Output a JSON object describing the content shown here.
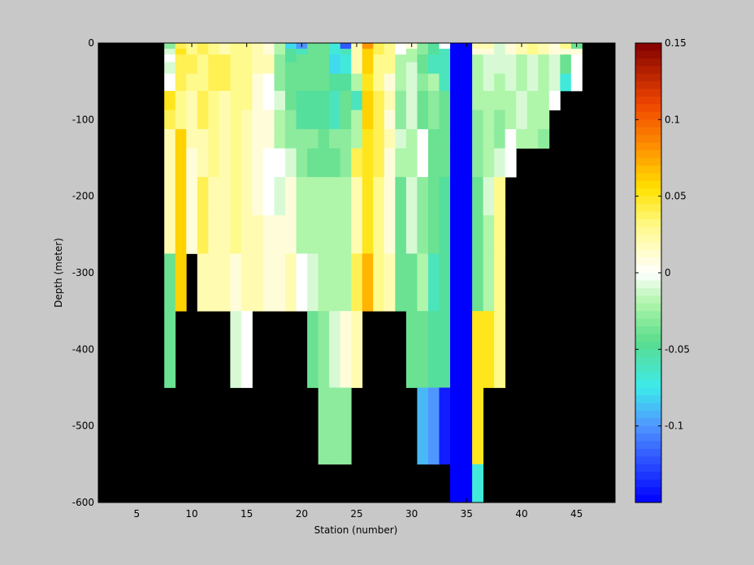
{
  "chart_data": {
    "type": "heatmap",
    "title": "",
    "xlabel": "Station (number)",
    "ylabel": "Depth (meter)",
    "xlim": [
      1.5,
      48.5
    ],
    "ylim": [
      -600,
      0
    ],
    "x_ticks": [
      5,
      10,
      15,
      20,
      25,
      30,
      35,
      40,
      45
    ],
    "y_ticks": [
      0,
      -100,
      -200,
      -300,
      -400,
      -500,
      -600
    ],
    "colorbar": {
      "colormap": "jet-white-centered",
      "clim": [
        -0.15,
        0.15
      ],
      "ticks": [
        0.15,
        0.1,
        0.05,
        0,
        -0.05,
        -0.1
      ],
      "tick_labels": [
        "0.15",
        "0.1",
        "0.05",
        "0",
        "-0.05",
        "-0.1"
      ]
    },
    "missing_color": "#000000",
    "depth_levels": [
      -5,
      -10,
      -20,
      -30,
      -50,
      -75,
      -100,
      -125,
      -150,
      -200,
      -250,
      -300,
      -400,
      -500,
      -600
    ],
    "stations": [
      8,
      9,
      10,
      11,
      12,
      13,
      14,
      15,
      16,
      17,
      18,
      19,
      20,
      21,
      22,
      23,
      24,
      25,
      26,
      27,
      28,
      29,
      30,
      31,
      32,
      33,
      34,
      35,
      36,
      37,
      38,
      39,
      40,
      41,
      42,
      43,
      44,
      45
    ],
    "columns": [
      {
        "x": 8,
        "v": [
          -0.03,
          -0.01,
          0.0,
          -0.01,
          0.0,
          0.05,
          0.04,
          0.02,
          0.02,
          0.02,
          0.02,
          -0.04,
          -0.04
        ]
      },
      {
        "x": 9,
        "v": [
          0.04,
          0.05,
          0.04,
          0.04,
          0.04,
          0.03,
          0.03,
          0.06,
          0.06,
          0.06,
          0.06,
          0.06
        ]
      },
      {
        "x": 10,
        "v": [
          0.03,
          0.03,
          0.04,
          0.04,
          0.03,
          0.02,
          0.02,
          0.02,
          0.01,
          0.01,
          0.01
        ]
      },
      {
        "x": 11,
        "v": [
          0.04,
          0.04,
          0.03,
          0.03,
          0.03,
          0.04,
          0.04,
          0.02,
          0.02,
          0.04,
          0.04,
          0.02
        ]
      },
      {
        "x": 12,
        "v": [
          0.03,
          0.03,
          0.04,
          0.04,
          0.04,
          0.03,
          0.03,
          0.03,
          0.03,
          0.02,
          0.02,
          0.02
        ]
      },
      {
        "x": 13,
        "v": [
          0.02,
          0.02,
          0.04,
          0.04,
          0.04,
          0.02,
          0.02,
          0.02,
          0.02,
          0.02,
          0.02,
          0.02
        ]
      },
      {
        "x": 14,
        "v": [
          0.03,
          0.03,
          0.03,
          0.03,
          0.03,
          0.03,
          0.03,
          0.03,
          0.03,
          0.03,
          0.03,
          0.01,
          -0.01
        ]
      },
      {
        "x": 15,
        "v": [
          0.03,
          0.03,
          0.03,
          0.03,
          0.03,
          0.03,
          0.02,
          0.02,
          0.02,
          0.02,
          0.02,
          0.02,
          0.0
        ]
      },
      {
        "x": 16,
        "v": [
          0.02,
          0.02,
          0.02,
          0.02,
          0.01,
          0.01,
          0.01,
          0.01,
          0.01,
          0.01,
          0.02,
          0.02
        ]
      },
      {
        "x": 17,
        "v": [
          0.01,
          0.01,
          0.02,
          0.02,
          0.0,
          0.0,
          0.01,
          0.01,
          0.0,
          0.0,
          0.01,
          0.01
        ]
      },
      {
        "x": 18,
        "v": [
          -0.02,
          -0.02,
          -0.03,
          -0.03,
          -0.03,
          -0.01,
          -0.02,
          -0.02,
          0.0,
          -0.01,
          0.01,
          0.01
        ]
      },
      {
        "x": 19,
        "v": [
          -0.08,
          -0.05,
          -0.05,
          -0.04,
          -0.04,
          -0.04,
          -0.03,
          -0.03,
          -0.01,
          0.01,
          0.01,
          0.02
        ]
      },
      {
        "x": 20,
        "v": [
          -0.1,
          -0.06,
          -0.04,
          -0.04,
          -0.04,
          -0.05,
          -0.05,
          -0.03,
          -0.03,
          -0.02,
          -0.02,
          0.0
        ]
      },
      {
        "x": 21,
        "v": [
          -0.04,
          -0.04,
          -0.04,
          -0.04,
          -0.04,
          -0.05,
          -0.05,
          -0.03,
          -0.04,
          -0.02,
          -0.02,
          -0.01,
          -0.04
        ]
      },
      {
        "x": 22,
        "v": [
          -0.04,
          -0.04,
          -0.04,
          -0.04,
          -0.04,
          -0.05,
          -0.05,
          -0.04,
          -0.04,
          -0.02,
          -0.02,
          -0.02,
          -0.03,
          -0.03
        ]
      },
      {
        "x": 23,
        "v": [
          -0.07,
          -0.07,
          -0.08,
          -0.08,
          -0.05,
          -0.06,
          -0.06,
          -0.03,
          -0.04,
          -0.02,
          -0.02,
          -0.02,
          -0.01,
          -0.03
        ]
      },
      {
        "x": 24,
        "v": [
          -0.12,
          -0.06,
          -0.07,
          -0.07,
          -0.05,
          -0.04,
          -0.04,
          -0.03,
          -0.03,
          -0.02,
          -0.02,
          -0.02,
          0.01,
          -0.03
        ]
      },
      {
        "x": 25,
        "v": [
          0.02,
          0.02,
          0.02,
          0.02,
          -0.02,
          -0.06,
          -0.02,
          -0.02,
          0.04,
          0.02,
          0.02,
          0.04,
          0.02
        ]
      },
      {
        "x": 26,
        "v": [
          0.08,
          0.06,
          0.06,
          0.06,
          0.05,
          0.06,
          0.06,
          0.05,
          0.05,
          0.05,
          0.05,
          0.07
        ]
      },
      {
        "x": 27,
        "v": [
          0.04,
          0.04,
          0.03,
          0.03,
          0.03,
          0.04,
          0.04,
          0.04,
          0.04,
          0.03,
          0.03,
          0.03
        ]
      },
      {
        "x": 28,
        "v": [
          0.03,
          0.03,
          0.03,
          0.03,
          0.01,
          0.02,
          0.01,
          0.02,
          0.01,
          0.01,
          0.01,
          0.02
        ]
      },
      {
        "x": 29,
        "v": [
          0.0,
          0.0,
          -0.02,
          -0.02,
          -0.02,
          -0.03,
          -0.03,
          -0.01,
          -0.02,
          -0.04,
          -0.04,
          -0.04
        ]
      },
      {
        "x": 30,
        "v": [
          0.01,
          -0.02,
          -0.02,
          -0.01,
          -0.01,
          -0.01,
          -0.01,
          -0.02,
          -0.02,
          -0.01,
          -0.01,
          -0.04,
          -0.04
        ]
      },
      {
        "x": 31,
        "v": [
          -0.03,
          -0.03,
          -0.04,
          -0.04,
          -0.03,
          -0.04,
          -0.04,
          0.0,
          0.0,
          -0.03,
          -0.03,
          -0.02,
          -0.04,
          -0.09
        ]
      },
      {
        "x": 32,
        "v": [
          -0.05,
          -0.05,
          -0.06,
          -0.06,
          -0.02,
          -0.03,
          -0.03,
          -0.04,
          -0.04,
          -0.04,
          -0.04,
          -0.06,
          -0.05,
          -0.1
        ]
      },
      {
        "x": 33,
        "v": [
          0.0,
          -0.06,
          -0.06,
          -0.06,
          -0.06,
          -0.04,
          -0.04,
          -0.04,
          -0.04,
          -0.05,
          -0.05,
          -0.05,
          -0.05,
          -0.14
        ]
      },
      {
        "x": 34,
        "v": [
          -0.15,
          -0.15,
          -0.15,
          -0.15,
          -0.15,
          -0.15,
          -0.15,
          -0.15,
          -0.15,
          -0.15,
          -0.15,
          -0.15,
          -0.15,
          -0.15,
          -0.15
        ]
      },
      {
        "x": 35,
        "v": [
          -0.15,
          -0.15,
          -0.15,
          -0.15,
          -0.15,
          -0.15,
          -0.15,
          -0.15,
          -0.15,
          -0.15,
          -0.15,
          -0.15,
          -0.15,
          -0.15,
          -0.15
        ]
      },
      {
        "x": 36,
        "v": [
          0.02,
          0.01,
          -0.02,
          -0.02,
          -0.02,
          -0.02,
          -0.03,
          -0.03,
          -0.03,
          -0.04,
          -0.04,
          -0.04,
          0.05,
          0.05,
          -0.07
        ]
      },
      {
        "x": 37,
        "v": [
          0.02,
          0.01,
          -0.01,
          -0.01,
          -0.01,
          -0.02,
          -0.02,
          -0.02,
          -0.02,
          -0.01,
          -0.02,
          -0.02,
          0.05
        ]
      },
      {
        "x": 38,
        "v": [
          -0.01,
          -0.01,
          -0.01,
          -0.01,
          -0.02,
          -0.02,
          -0.03,
          -0.03,
          -0.01,
          0.03,
          0.03,
          0.03,
          0.03
        ]
      },
      {
        "x": 39,
        "v": [
          0.01,
          0.01,
          -0.01,
          -0.01,
          -0.01,
          -0.02,
          -0.02,
          0.0,
          0.0
        ]
      },
      {
        "x": 40,
        "v": [
          0.02,
          0.02,
          -0.02,
          -0.02,
          -0.02,
          -0.01,
          -0.01,
          -0.02
        ]
      },
      {
        "x": 41,
        "v": [
          0.03,
          0.03,
          -0.01,
          -0.01,
          -0.01,
          -0.02,
          -0.02,
          -0.02
        ]
      },
      {
        "x": 42,
        "v": [
          0.02,
          0.02,
          -0.02,
          -0.02,
          -0.02,
          -0.02,
          -0.02,
          -0.03
        ]
      },
      {
        "x": 43,
        "v": [
          0.01,
          0.01,
          -0.01,
          -0.01,
          -0.01,
          0.0
        ]
      },
      {
        "x": 44,
        "v": [
          0.03,
          0.01,
          -0.04,
          -0.04,
          -0.07
        ]
      },
      {
        "x": 45,
        "v": [
          -0.04,
          0.01,
          0.0,
          0.0,
          0.0
        ]
      }
    ]
  }
}
